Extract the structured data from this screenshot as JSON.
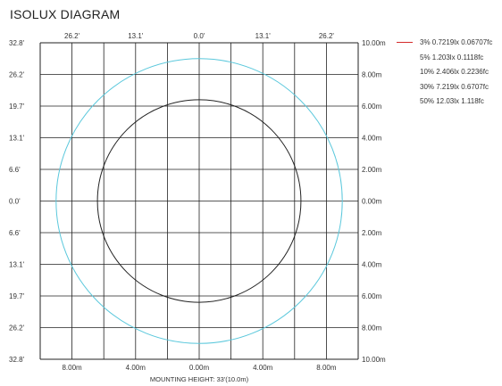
{
  "title": "ISOLUX DIAGRAM",
  "chart_data": {
    "type": "isolux",
    "title": "ISOLUX DIAGRAM",
    "xlabel": "MOUNTING HEIGHT: 33'(10.0m)",
    "x_bottom_ticks": [
      "8.00m",
      "4.00m",
      "0.00m",
      "4.00m",
      "8.00m"
    ],
    "x_top_ticks": [
      "26.2'",
      "13.1'",
      "0.0'",
      "13.1'",
      "26.2'"
    ],
    "y_left_ticks": [
      "32.8'",
      "26.2'",
      "19.7'",
      "13.1'",
      "6.6'",
      "0.0'",
      "6.6'",
      "13.1'",
      "19.7'",
      "26.2'",
      "32.8'"
    ],
    "y_right_ticks": [
      "10.00m",
      "8.00m",
      "6.00m",
      "4.00m",
      "2.00m",
      "0.00m",
      "2.00m",
      "4.00m",
      "6.00m",
      "8.00m",
      "10.00m"
    ],
    "range_m": [
      -10,
      10
    ],
    "grid": true,
    "legend_position": "right",
    "contours": [
      {
        "label": "3% 0.7219lx 0.06707fc",
        "radius_m": 9.0,
        "color": "#5bc8dc",
        "drawn": true
      },
      {
        "label": "5% 1.203lx 0.1118fc",
        "radius_m": 6.4,
        "color": "#222222",
        "drawn": true
      },
      {
        "label": "10% 2.406lx 0.2236fc",
        "drawn": false
      },
      {
        "label": "30% 7.219lx 0.6707fc",
        "drawn": false
      },
      {
        "label": "50% 12.03lx 1.118fc",
        "drawn": false
      }
    ],
    "legend_line_color": "#d42a2a"
  }
}
